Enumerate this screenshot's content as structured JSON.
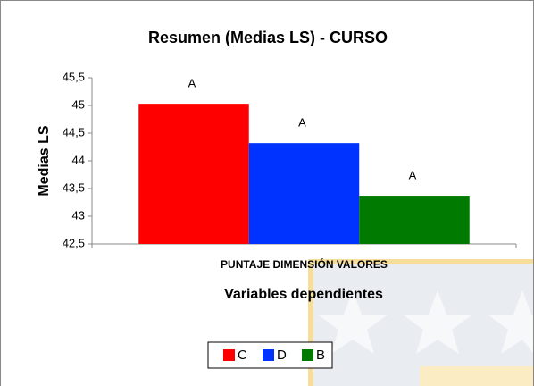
{
  "chart_data": {
    "type": "bar",
    "title": "Resumen (Medias LS) - CURSO",
    "categories": [
      "PUNTAJE DIMENSIÓN VALORES"
    ],
    "series": [
      {
        "name": "C",
        "color": "#ff0000",
        "values": [
          45.03
        ],
        "letters": [
          "A"
        ]
      },
      {
        "name": "D",
        "color": "#0033ff",
        "values": [
          44.32
        ],
        "letters": [
          "A"
        ]
      },
      {
        "name": "B",
        "color": "#007a00",
        "values": [
          43.37
        ],
        "letters": [
          "A"
        ]
      }
    ],
    "x_label": "Variables dependientes",
    "y_label": "Medias LS",
    "ylim": [
      42.5,
      45.5
    ],
    "yticks": [
      {
        "value": 42.5,
        "label": "42,5"
      },
      43,
      {
        "value": 43.5,
        "label": "43,5"
      },
      44,
      {
        "value": 44.5,
        "label": "44,5"
      },
      45,
      {
        "value": 45.5,
        "label": "45,5"
      }
    ],
    "legend": "bottom"
  }
}
